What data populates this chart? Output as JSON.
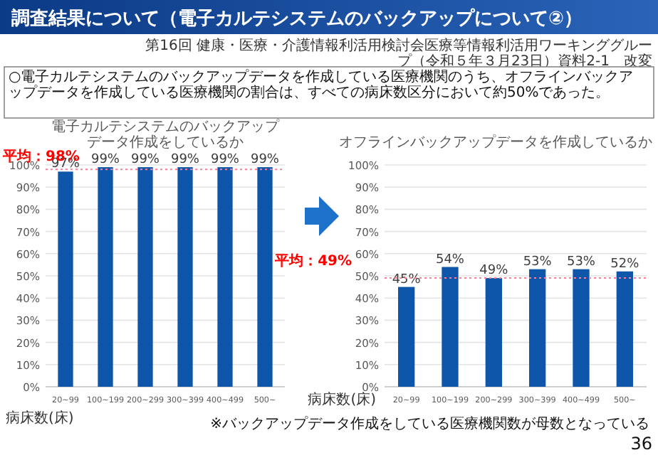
{
  "chart_data": [
    {
      "type": "bar",
      "title": "電子カルテシステムのバックアップデータ作成をしているか",
      "xlabel": "病床数(床)",
      "categories": [
        "20~99",
        "100~199",
        "200~299",
        "300~399",
        "400~499",
        "500~"
      ],
      "series": [
        {
          "color": "#0d56a9",
          "values": [
            97,
            99,
            99,
            99,
            99,
            99
          ],
          "value_labels": [
            "97%",
            "99%",
            "99%",
            "99%",
            "99%",
            "99%"
          ]
        }
      ],
      "ylim": [
        0,
        100
      ],
      "yticks": [
        {
          "value": 0,
          "label": "0%"
        },
        {
          "value": 10,
          "label": "10%"
        },
        {
          "value": 20,
          "label": "20%"
        },
        {
          "value": 30,
          "label": "30%"
        },
        {
          "value": 40,
          "label": "40%"
        },
        {
          "value": 50,
          "label": "50%"
        },
        {
          "value": 60,
          "label": "60%"
        },
        {
          "value": 70,
          "label": "70%"
        },
        {
          "value": 80,
          "label": "80%"
        },
        {
          "value": 90,
          "label": "90%"
        },
        {
          "value": 100,
          "label": "100%"
        }
      ],
      "ref_lines": [
        {
          "axis": "y",
          "value": 98,
          "label": "平均：98%",
          "color": "#ff7c9c",
          "line_style": "dotted"
        }
      ],
      "grid": "y",
      "annotations": [
        "調査結果について（電子カルテシステムのバックアップについて②）",
        "第16回 健康・医療・介護情報利活用検討会医療等情報利活用ワーキンググループ（令和５年３月23日）資料2-1　改変",
        "○電子カルテシステムのバックアップデータを作成している医療機関のうち、オフラインバックアップデータを作成している医療機関の割合は、すべての病床数区分において約50%であった。"
      ]
    },
    {
      "type": "bar",
      "title": "オフラインバックアップデータを作成しているか",
      "xlabel": "病床数(床)",
      "categories": [
        "20~99",
        "100~199",
        "200~299",
        "300~399",
        "400~499",
        "500~"
      ],
      "series": [
        {
          "color": "#0d56a9",
          "values": [
            45,
            54,
            49,
            53,
            53,
            52
          ],
          "value_labels": [
            "45%",
            "54%",
            "49%",
            "53%",
            "53%",
            "52%"
          ]
        }
      ],
      "ylim": [
        0,
        100
      ],
      "yticks": [
        {
          "value": 0,
          "label": "0%"
        },
        {
          "value": 10,
          "label": "10%"
        },
        {
          "value": 20,
          "label": "20%"
        },
        {
          "value": 30,
          "label": "30%"
        },
        {
          "value": 40,
          "label": "40%"
        },
        {
          "value": 50,
          "label": "50%"
        },
        {
          "value": 60,
          "label": "60%"
        },
        {
          "value": 70,
          "label": "70%"
        },
        {
          "value": 80,
          "label": "80%"
        },
        {
          "value": 90,
          "label": "90%"
        },
        {
          "value": 100,
          "label": "100%"
        }
      ],
      "ref_lines": [
        {
          "axis": "y",
          "value": 49,
          "label": "平均：49%",
          "color": "#ff7c9c",
          "line_style": "dotted"
        }
      ],
      "grid": "y",
      "annotations": [
        "※バックアップデータ作成をしている医療機関数が母数となっている",
        "36"
      ]
    }
  ]
}
